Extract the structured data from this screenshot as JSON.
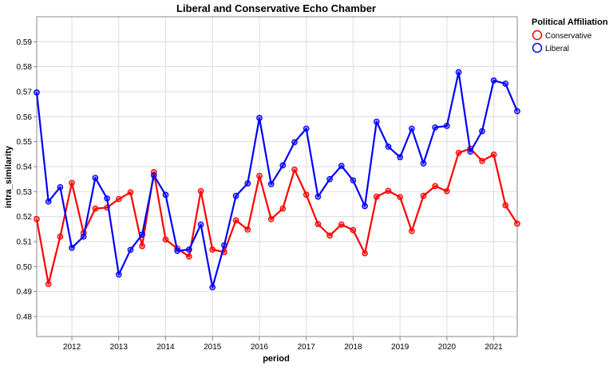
{
  "chart_data": {
    "type": "line",
    "title": "Liberal and Conservative Echo Chamber",
    "xlabel": "period",
    "ylabel": "intra_similarity",
    "ylim": [
      0.472,
      0.6
    ],
    "yticks": [
      0.48,
      0.49,
      0.5,
      0.51,
      0.52,
      0.53,
      0.54,
      0.55,
      0.56,
      0.57,
      0.58,
      0.59
    ],
    "ytick_labels": [
      "0.48",
      "0.49",
      "0.50",
      "0.51",
      "0.52",
      "0.53",
      "0.54",
      "0.55",
      "0.56",
      "0.57",
      "0.58",
      "0.59"
    ],
    "xlim": [
      2011.25,
      2021.5
    ],
    "xticks": [
      2012,
      2013,
      2014,
      2015,
      2016,
      2017,
      2018,
      2019,
      2020,
      2021
    ],
    "xtick_labels": [
      "2012",
      "2013",
      "2014",
      "2015",
      "2016",
      "2017",
      "2018",
      "2019",
      "2020",
      "2021"
    ],
    "grid": true,
    "legend": {
      "title": "Political Affiliation",
      "position": "top-right",
      "entries": [
        "Conservative",
        "Liberal"
      ]
    },
    "series": [
      {
        "name": "Conservative",
        "color": "#ff0000",
        "x": [
          2011.25,
          2011.5,
          2011.75,
          2012.0,
          2012.25,
          2012.5,
          2012.75,
          2013.0,
          2013.25,
          2013.5,
          2013.75,
          2014.0,
          2014.25,
          2014.5,
          2014.75,
          2015.0,
          2015.25,
          2015.5,
          2015.75,
          2016.0,
          2016.25,
          2016.5,
          2016.75,
          2017.0,
          2017.25,
          2017.5,
          2017.75,
          2018.0,
          2018.25,
          2018.5,
          2018.75,
          2019.0,
          2019.25,
          2019.5,
          2019.75,
          2020.0,
          2020.25,
          2020.5,
          2020.75,
          2021.0,
          2021.25,
          2021.5
        ],
        "values": [
          0.519,
          0.493,
          0.512,
          0.5335,
          0.5135,
          0.5232,
          0.5236,
          0.527,
          0.5297,
          0.5082,
          0.5378,
          0.5108,
          0.5072,
          0.504,
          0.5302,
          0.5068,
          0.5058,
          0.5185,
          0.5148,
          0.5363,
          0.519,
          0.5232,
          0.5388,
          0.5288,
          0.517,
          0.5124,
          0.5168,
          0.5146,
          0.5053,
          0.528,
          0.5303,
          0.5278,
          0.5142,
          0.5283,
          0.5322,
          0.5302,
          0.5455,
          0.5472,
          0.5423,
          0.5448,
          0.5245,
          0.5172
        ]
      },
      {
        "name": "Liberal",
        "color": "#0000ff",
        "x": [
          2011.25,
          2011.5,
          2011.75,
          2012.0,
          2012.25,
          2012.5,
          2012.75,
          2013.0,
          2013.25,
          2013.5,
          2013.75,
          2014.0,
          2014.25,
          2014.5,
          2014.75,
          2015.0,
          2015.25,
          2015.5,
          2015.75,
          2016.0,
          2016.25,
          2016.5,
          2016.75,
          2017.0,
          2017.25,
          2017.5,
          2017.75,
          2018.0,
          2018.25,
          2018.5,
          2018.75,
          2019.0,
          2019.25,
          2019.5,
          2019.75,
          2020.0,
          2020.25,
          2020.5,
          2020.75,
          2021.0,
          2021.25,
          2021.5
        ],
        "values": [
          0.5697,
          0.526,
          0.5318,
          0.5075,
          0.512,
          0.5355,
          0.5273,
          0.4968,
          0.5067,
          0.5128,
          0.5365,
          0.5287,
          0.5063,
          0.5068,
          0.5168,
          0.4917,
          0.5085,
          0.5283,
          0.5333,
          0.5595,
          0.533,
          0.5405,
          0.5498,
          0.5552,
          0.528,
          0.535,
          0.5403,
          0.5345,
          0.5242,
          0.558,
          0.548,
          0.5438,
          0.5552,
          0.5413,
          0.5557,
          0.5563,
          0.5778,
          0.546,
          0.5542,
          0.5745,
          0.5732,
          0.5622
        ]
      }
    ]
  }
}
